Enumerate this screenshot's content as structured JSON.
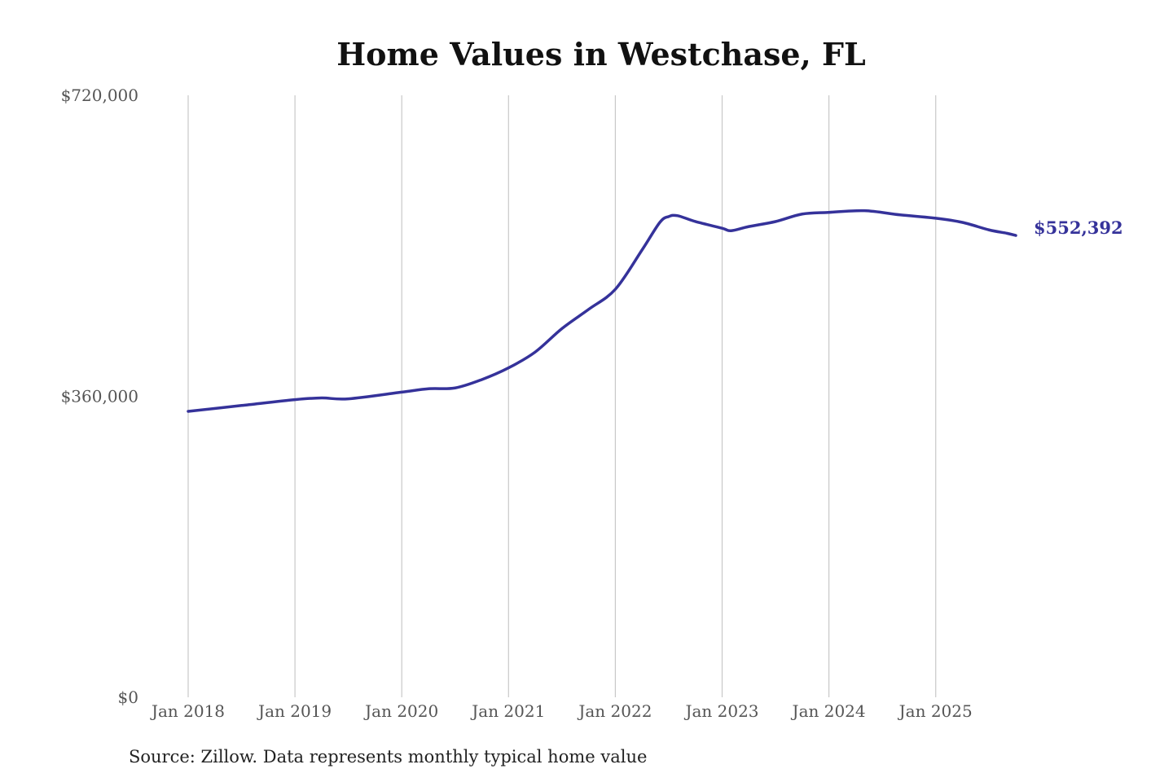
{
  "chart_data": {
    "type": "line",
    "title": "Home Values in Westchase, FL",
    "xlabel": "",
    "ylabel": "",
    "ylim": [
      0,
      720000
    ],
    "y_ticks": [
      0,
      360000,
      720000
    ],
    "y_tick_labels": [
      "$0",
      "$360,000",
      "$720,000"
    ],
    "x_ticks": [
      "2018-01",
      "2019-01",
      "2020-01",
      "2021-01",
      "2022-01",
      "2023-01",
      "2024-01",
      "2025-01"
    ],
    "x_tick_labels": [
      "Jan 2018",
      "Jan 2019",
      "Jan 2020",
      "Jan 2021",
      "Jan 2022",
      "Jan 2023",
      "Jan 2024",
      "Jan 2025"
    ],
    "grid": "vertical",
    "line_color": "#35329a",
    "series": [
      {
        "x": [
          "2018-01",
          "2018-07",
          "2019-01",
          "2019-04",
          "2019-07",
          "2020-01",
          "2020-04",
          "2020-07",
          "2020-10",
          "2021-01",
          "2021-04",
          "2021-07",
          "2021-10",
          "2022-01",
          "2022-04",
          "2022-06",
          "2022-07",
          "2022-08",
          "2022-10",
          "2023-01",
          "2023-02",
          "2023-04",
          "2023-07",
          "2023-10",
          "2024-01",
          "2024-05",
          "2024-09",
          "2025-01",
          "2025-04",
          "2025-07",
          "2025-09",
          "2025-10"
        ],
        "values": [
          342000,
          349000,
          356000,
          358000,
          357000,
          365000,
          369000,
          370000,
          380000,
          394000,
          413000,
          441000,
          464000,
          488000,
          535000,
          568000,
          575000,
          576000,
          569000,
          561000,
          558000,
          563000,
          569000,
          578000,
          580000,
          582000,
          577000,
          573000,
          568000,
          559000,
          555000,
          552392
        ]
      }
    ],
    "end_label": "$552,392",
    "source": "Source: Zillow. Data represents monthly typical home value"
  }
}
